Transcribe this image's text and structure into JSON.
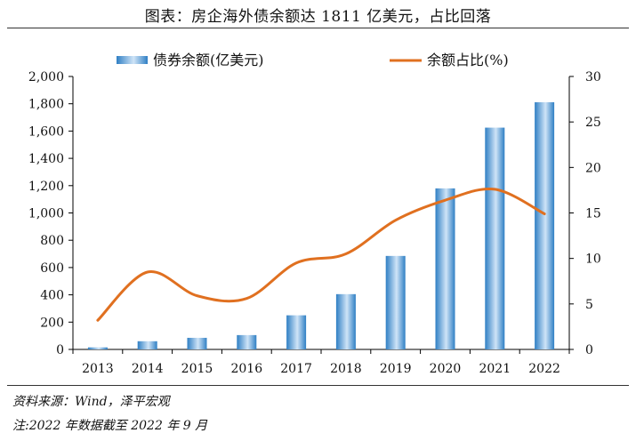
{
  "title": "图表：房企海外债余额达 1811 亿美元，占比回落",
  "source": "资料来源：Wind，泽平宏观",
  "note": "注:2022 年数据截至 2022 年 9 月",
  "colors": {
    "bar_light": "#cfe4f7",
    "bar_dark": "#2f7fc4",
    "line": "#e07020",
    "axis": "#000000"
  },
  "chart_data": {
    "type": "bar+line",
    "categories": [
      "2013",
      "2014",
      "2015",
      "2016",
      "2017",
      "2018",
      "2019",
      "2020",
      "2021",
      "2022"
    ],
    "series": [
      {
        "name": "债券余额(亿美元)",
        "type": "bar",
        "axis": "left",
        "values": [
          15,
          60,
          85,
          105,
          250,
          405,
          685,
          1180,
          1625,
          1811
        ]
      },
      {
        "name": "余额占比(%)",
        "type": "line",
        "axis": "right",
        "values": [
          3.2,
          8.5,
          5.9,
          5.6,
          9.5,
          10.5,
          14.2,
          16.4,
          17.6,
          14.9
        ]
      }
    ],
    "y_left": {
      "min": 0,
      "max": 2000,
      "step": 200,
      "ticks": [
        "0",
        "200",
        "400",
        "600",
        "800",
        "1,000",
        "1,200",
        "1,400",
        "1,600",
        "1,800",
        "2,000"
      ]
    },
    "y_right": {
      "min": 0,
      "max": 30,
      "step": 5,
      "ticks": [
        "0",
        "5",
        "10",
        "15",
        "20",
        "25",
        "30"
      ]
    },
    "legend_position": "top-center",
    "grid": false
  }
}
